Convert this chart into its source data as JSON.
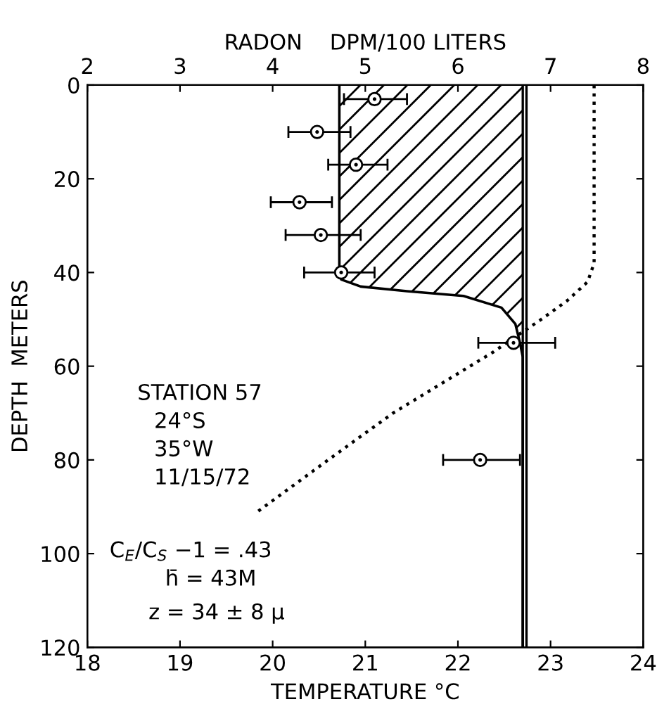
{
  "chart_data": {
    "type": "scatter",
    "xlabel": "TEMPERATURE °C",
    "x2label": "RADON    DPM/100 LITERS",
    "ylabel": "DEPTH  METERS",
    "xlim": [
      18,
      24
    ],
    "xticks": [
      18,
      19,
      20,
      21,
      22,
      23,
      24
    ],
    "x2lim": [
      2,
      8
    ],
    "x2ticks": [
      2,
      3,
      4,
      5,
      6,
      7,
      8
    ],
    "ylim": [
      120,
      0
    ],
    "yticks": [
      0,
      20,
      40,
      60,
      80,
      100,
      120
    ],
    "grid": false,
    "legend": false,
    "series": [
      {
        "type": "area",
        "axis": "x2",
        "color": "#000000",
        "line_style": "solid",
        "x": [
          4.72,
          4.72,
          4.74,
          4.95,
          5.45,
          6.06,
          6.47,
          6.62,
          6.67,
          6.7,
          6.7
        ],
        "values": [
          0,
          40,
          41.5,
          43,
          44,
          45,
          47.5,
          51,
          55,
          58,
          120
        ]
      },
      {
        "type": "line",
        "color": "#000000",
        "marker": "none",
        "line_style": "dotted",
        "x": [
          23.47,
          23.47,
          23.4,
          23.18,
          22.9,
          22.6,
          22.38,
          21.3,
          20.6,
          19.84
        ],
        "values": [
          0,
          38,
          42,
          46,
          50,
          54,
          57,
          70,
          80,
          91
        ]
      },
      {
        "axis": "x2",
        "color": "#000000",
        "marker": "circle",
        "x": [
          5.1,
          4.48,
          4.9,
          4.29,
          4.52,
          4.74,
          6.6,
          6.24
        ],
        "values": [
          3,
          10,
          17,
          25,
          32,
          40,
          55,
          80
        ],
        "xerrors": [
          [
            4.77,
            5.45
          ],
          [
            4.17,
            4.84
          ],
          [
            4.6,
            5.24
          ],
          [
            3.98,
            4.64
          ],
          [
            4.14,
            4.95
          ],
          [
            4.34,
            5.1
          ],
          [
            6.22,
            7.05
          ],
          [
            5.84,
            6.67
          ]
        ]
      }
    ],
    "ref_lines": [
      {
        "axis": "x2",
        "value": 6.7,
        "color": "#000000",
        "line_style": "solid"
      },
      {
        "axis": "x2",
        "value": 6.74,
        "color": "#000000",
        "line_style": "solid"
      }
    ],
    "annotations": [
      "STATION 57",
      "24°S",
      "35°W",
      "11/15/72",
      "C$_{E}$/C$_{S}$ −1 = .43",
      "h̄ = 43M",
      "z = 34 ± 8 μ"
    ]
  }
}
